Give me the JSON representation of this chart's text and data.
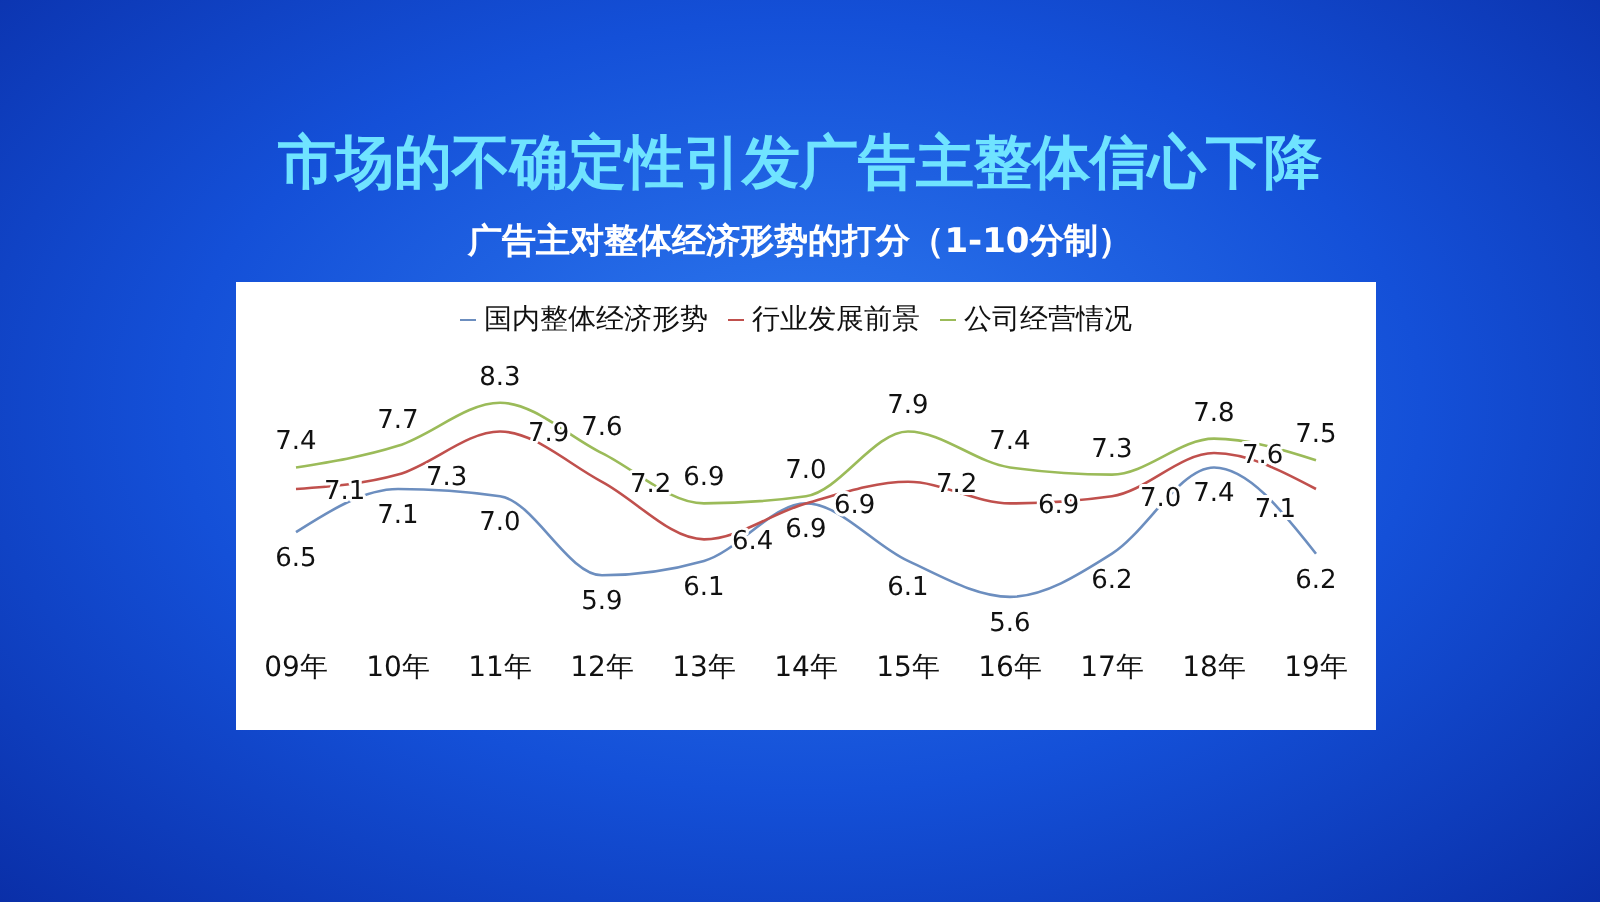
{
  "chart_data": {
    "type": "line",
    "title": "市场的不确定性引发广告主整体信心下降",
    "subtitle": "广告主对整体经济形势的打分（1-10分制）",
    "categories": [
      "09年",
      "10年",
      "11年",
      "12年",
      "13年",
      "14年",
      "15年",
      "16年",
      "17年",
      "18年",
      "19年"
    ],
    "series": [
      {
        "name": "国内整体经济形势",
        "color": "#6c8ebf",
        "values": [
          6.5,
          7.1,
          7.0,
          5.9,
          6.1,
          6.9,
          6.1,
          5.6,
          6.2,
          7.4,
          6.2
        ],
        "value_labels": [
          "6.5",
          "7.1",
          "7.0",
          "5.9",
          "6.1",
          "6.9",
          "6.1",
          "5.6",
          "6.2",
          "7.4",
          "6.2"
        ]
      },
      {
        "name": "行业发展前景",
        "color": "#c0504d",
        "values": [
          7.1,
          7.3,
          7.9,
          7.2,
          6.4,
          6.9,
          7.2,
          6.9,
          7.0,
          7.6,
          7.1
        ],
        "value_labels": [
          "7.1",
          "7.3",
          "7.9",
          "7.2",
          "6.4",
          "6.9",
          "7.2",
          "6.9",
          "7.0",
          "7.6",
          "7.1"
        ]
      },
      {
        "name": "公司经营情况",
        "color": "#9bbb59",
        "values": [
          7.4,
          7.7,
          8.3,
          7.6,
          6.9,
          7.0,
          7.9,
          7.4,
          7.3,
          7.8,
          7.5
        ],
        "value_labels": [
          "7.4",
          "7.7",
          "8.3",
          "7.6",
          "6.9",
          "7.0",
          "7.9",
          "7.4",
          "7.3",
          "7.8",
          "7.5"
        ]
      }
    ],
    "legend": "top",
    "grid": false,
    "marker": "none",
    "line_style": "solid"
  }
}
